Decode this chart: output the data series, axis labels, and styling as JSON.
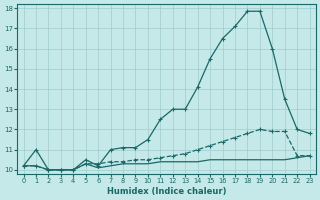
{
  "title": "",
  "xlabel": "Humidex (Indice chaleur)",
  "bg_color": "#c5e8e8",
  "grid_color": "#a0cccc",
  "line_color": "#1a6868",
  "xlim": [
    -0.5,
    23.5
  ],
  "ylim": [
    9.8,
    18.2
  ],
  "xticks": [
    0,
    1,
    2,
    3,
    4,
    5,
    6,
    7,
    8,
    9,
    10,
    11,
    12,
    13,
    14,
    15,
    16,
    17,
    18,
    19,
    20,
    21,
    22,
    23
  ],
  "yticks": [
    10,
    11,
    12,
    13,
    14,
    15,
    16,
    17,
    18
  ],
  "line1_x": [
    0,
    1,
    2,
    3,
    4,
    5,
    6,
    7,
    8,
    9,
    10,
    11,
    12,
    13,
    14,
    15,
    16,
    17,
    18,
    19,
    20,
    21,
    22,
    23
  ],
  "line1_y": [
    10.2,
    11.0,
    10.0,
    10.0,
    10.0,
    10.5,
    10.2,
    11.0,
    11.1,
    11.1,
    11.5,
    12.5,
    13.0,
    13.0,
    14.1,
    15.5,
    16.5,
    17.1,
    17.85,
    17.85,
    16.0,
    13.5,
    12.0,
    11.8
  ],
  "line2_x": [
    0,
    1,
    2,
    3,
    4,
    5,
    6,
    7,
    8,
    9,
    10,
    11,
    12,
    13,
    14,
    15,
    16,
    17,
    18,
    19,
    20,
    21,
    22,
    23
  ],
  "line2_y": [
    10.2,
    10.2,
    10.0,
    10.0,
    10.0,
    10.3,
    10.3,
    10.4,
    10.4,
    10.5,
    10.5,
    10.6,
    10.7,
    10.8,
    11.0,
    11.2,
    11.4,
    11.6,
    11.8,
    12.0,
    11.9,
    11.9,
    10.7,
    10.7
  ],
  "line3_x": [
    0,
    1,
    2,
    3,
    4,
    5,
    6,
    7,
    8,
    9,
    10,
    11,
    12,
    13,
    14,
    15,
    16,
    17,
    18,
    19,
    20,
    21,
    22,
    23
  ],
  "line3_y": [
    10.2,
    10.2,
    10.0,
    10.0,
    10.0,
    10.3,
    10.1,
    10.2,
    10.3,
    10.3,
    10.3,
    10.4,
    10.4,
    10.4,
    10.4,
    10.5,
    10.5,
    10.5,
    10.5,
    10.5,
    10.5,
    10.5,
    10.6,
    10.7
  ]
}
